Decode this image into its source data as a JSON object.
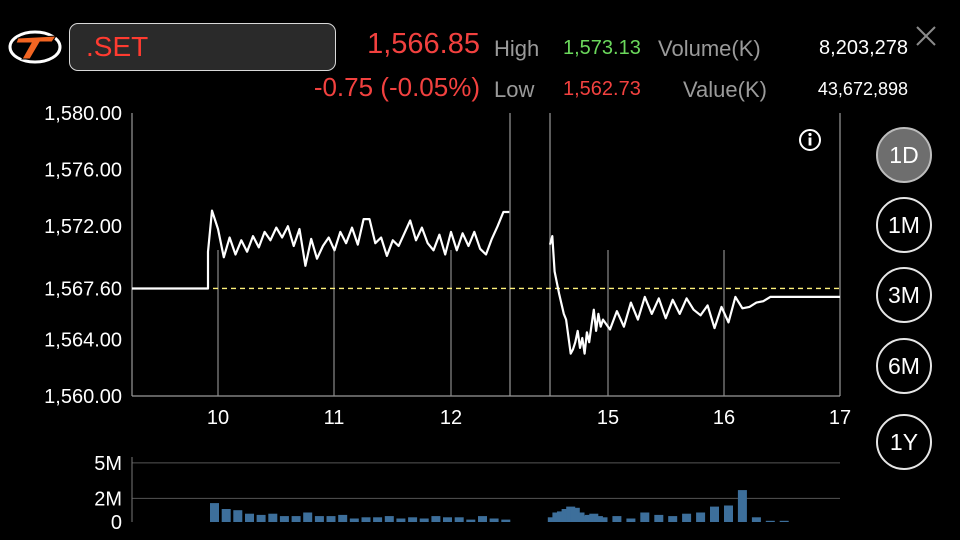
{
  "header": {
    "symbol": ".SET",
    "last": "1,566.85",
    "change": "-0.75 (-0.05%)",
    "high_label": "High",
    "high": "1,573.13",
    "low_label": "Low",
    "low": "1,562.73",
    "volume_label": "Volume(K)",
    "volume": "8,203,278",
    "value_label": "Value(K)",
    "value": "43,672,898"
  },
  "colors": {
    "up": "#6bd85c",
    "down": "#f2413f",
    "baseline": "#fff27a",
    "volume_bar": "#3d6f9b"
  },
  "icons": {
    "logo": "t-logo-icon",
    "info": "info-icon",
    "close": "close-icon"
  },
  "ranges": [
    "1D",
    "1M",
    "3M",
    "6M",
    "1Y"
  ],
  "active_range": "1D",
  "chart_data": {
    "type": "line",
    "x_ticks": [
      "10",
      "11",
      "12",
      "15",
      "16",
      "17"
    ],
    "y_ticks": [
      "1,580.00",
      "1,576.00",
      "1,572.00",
      "1,567.60",
      "1,564.00",
      "1,560.00"
    ],
    "baseline": 1567.6,
    "baseline_label": "1,567.60",
    "ylim": [
      1560,
      1580
    ],
    "session1": {
      "x": [
        9.4,
        9.5,
        9.6,
        9.7,
        9.8,
        9.9,
        9.92,
        9.95,
        10.0,
        10.05,
        10.1,
        10.15,
        10.2,
        10.25,
        10.3,
        10.35,
        10.4,
        10.45,
        10.5,
        10.55,
        10.6,
        10.65,
        10.7,
        10.75,
        10.8,
        10.85,
        10.9,
        10.95,
        11.0,
        11.05,
        11.1,
        11.15,
        11.2,
        11.25,
        11.3,
        11.35,
        11.4,
        11.45,
        11.5,
        11.55,
        11.6,
        11.65,
        11.7,
        11.75,
        11.8,
        11.85,
        11.9,
        11.95,
        12.0,
        12.05,
        12.1,
        12.15,
        12.2,
        12.25,
        12.3,
        12.35,
        12.4,
        12.45,
        12.5
      ],
      "y": [
        1567.6,
        1567.6,
        1567.6,
        1567.6,
        1567.6,
        1567.6,
        1570.2,
        1573.1,
        1571.8,
        1569.8,
        1571.2,
        1570.0,
        1571.0,
        1570.2,
        1571.3,
        1570.5,
        1571.6,
        1571.0,
        1571.9,
        1571.2,
        1572.0,
        1570.6,
        1571.8,
        1569.2,
        1571.1,
        1569.7,
        1570.6,
        1571.2,
        1570.3,
        1571.6,
        1570.8,
        1571.9,
        1570.7,
        1572.5,
        1572.5,
        1570.8,
        1571.2,
        1569.9,
        1571.0,
        1570.6,
        1571.5,
        1572.4,
        1571.0,
        1571.9,
        1570.8,
        1570.3,
        1571.4,
        1570.0,
        1571.6,
        1570.3,
        1571.5,
        1570.6,
        1571.6,
        1570.4,
        1570.0,
        1571.1,
        1572.0,
        1573.0,
        1573.0
      ]
    },
    "session2": {
      "x": [
        13.85,
        13.9,
        13.95,
        14.0,
        14.05,
        14.1,
        14.15,
        14.2,
        14.25,
        14.3,
        14.35,
        14.4,
        14.45,
        14.5,
        14.55,
        14.6,
        14.65,
        14.7,
        14.75,
        14.8,
        14.85,
        14.9,
        14.95,
        15.0,
        15.05,
        15.1,
        15.15,
        15.2,
        15.25,
        15.3,
        15.35,
        15.4,
        15.45,
        15.5,
        15.55,
        15.6,
        15.65,
        15.7,
        15.75,
        15.8,
        15.85,
        15.9,
        15.95,
        16.0,
        16.05,
        16.1,
        16.15,
        16.2,
        16.25,
        16.3,
        16.35,
        16.4,
        16.5,
        16.6,
        16.7
      ],
      "y": [
        1570.7,
        1571.3,
        1568.8,
        1568.0,
        1567.2,
        1566.5,
        1565.8,
        1565.4,
        1564.2,
        1563.0,
        1563.3,
        1563.8,
        1564.6,
        1563.4,
        1564.1,
        1563.0,
        1564.5,
        1563.8,
        1565.0,
        1566.1,
        1564.6,
        1565.8,
        1564.9,
        1565.4,
        1564.7,
        1566.0,
        1564.9,
        1566.6,
        1565.4,
        1567.0,
        1565.8,
        1566.9,
        1565.5,
        1566.8,
        1565.8,
        1566.9,
        1566.1,
        1565.7,
        1566.4,
        1564.8,
        1566.3,
        1565.2,
        1567.0,
        1566.2,
        1566.3,
        1566.6,
        1566.7,
        1567.0,
        1567.0,
        1567.0,
        1567.0,
        1567.0,
        1567.0,
        1567.0,
        1567.0
      ]
    },
    "gap_lines_x": [
      12.52,
      13.85
    ],
    "xlim": [
      9.4,
      16.7
    ],
    "volume": {
      "y_ticks": [
        "5M",
        "2M",
        "0"
      ],
      "ylim": [
        0,
        5.5
      ],
      "x": [
        9.97,
        10.07,
        10.17,
        10.27,
        10.37,
        10.47,
        10.57,
        10.67,
        10.77,
        10.87,
        10.97,
        11.07,
        11.17,
        11.27,
        11.37,
        11.47,
        11.57,
        11.67,
        11.77,
        11.87,
        11.97,
        12.07,
        12.17,
        12.27,
        12.37,
        12.47,
        13.9,
        14.0,
        14.1,
        14.2,
        14.3,
        14.4,
        14.5,
        14.6,
        14.7,
        14.8,
        14.9,
        15.0,
        15.1,
        15.2,
        15.3,
        15.4,
        15.5,
        15.6,
        15.7,
        15.8,
        15.9,
        16.0,
        16.1,
        16.2,
        16.3,
        16.4
      ],
      "values": [
        1.6,
        1.1,
        1.0,
        0.7,
        0.6,
        0.7,
        0.5,
        0.5,
        0.8,
        0.5,
        0.5,
        0.6,
        0.3,
        0.4,
        0.4,
        0.5,
        0.3,
        0.4,
        0.3,
        0.5,
        0.4,
        0.4,
        0.2,
        0.5,
        0.3,
        0.2,
        0.4,
        0.8,
        0.9,
        1.1,
        1.3,
        1.2,
        0.8,
        0.5,
        0.6,
        0.7,
        0.5,
        0.4,
        0.5,
        0.3,
        0.8,
        0.6,
        0.5,
        0.7,
        0.8,
        1.3,
        1.4,
        2.7,
        0.4,
        0.1,
        0.1,
        0.0
      ]
    }
  }
}
